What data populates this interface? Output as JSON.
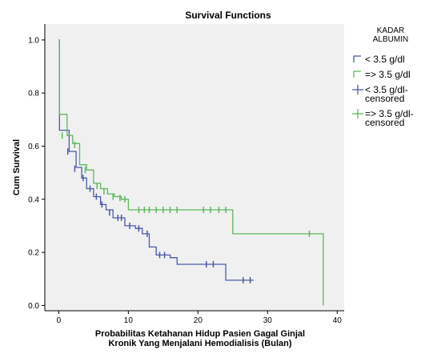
{
  "chart_data": {
    "type": "line",
    "step": true,
    "title": "Survival Functions",
    "xlabel_lines": [
      "Probabilitas Ketahanan Hidup Pasien Gagal Ginjal",
      "Kronik Yang Menjalani Hemodialisis (Bulan)"
    ],
    "ylabel": "Cum Survival",
    "xlim": [
      -2,
      41
    ],
    "ylim": [
      -0.02,
      1.06
    ],
    "xticks": [
      0,
      10,
      20,
      30,
      40
    ],
    "yticks": [
      0.0,
      0.2,
      0.4,
      0.6,
      0.8,
      1.0
    ],
    "ytick_labels": [
      "0.0",
      "0.2",
      "0.4",
      "0.6",
      "0.8",
      "1.0"
    ],
    "grid": false,
    "legend_position": "right",
    "legend_title_lines": [
      "KADAR",
      "ALBUMIN"
    ],
    "legend": [
      {
        "label_lines": [
          "< 3.5 g/dl"
        ],
        "kind": "line",
        "series": 0
      },
      {
        "label_lines": [
          "=> 3.5 g/dl"
        ],
        "kind": "line",
        "series": 1
      },
      {
        "label_lines": [
          "< 3.5 g/dl-",
          "censored"
        ],
        "kind": "censor",
        "series": 0
      },
      {
        "label_lines": [
          "=> 3.5 g/dl-",
          "censored"
        ],
        "kind": "censor",
        "series": 1
      }
    ],
    "series": [
      {
        "name": "< 3.5 g/dl",
        "color": "#4a5aa8",
        "steps": [
          [
            0,
            1.0
          ],
          [
            0.1,
            0.66
          ],
          [
            1.5,
            0.58
          ],
          [
            2.5,
            0.52
          ],
          [
            3.3,
            0.48
          ],
          [
            4,
            0.44
          ],
          [
            5,
            0.41
          ],
          [
            6,
            0.38
          ],
          [
            6.8,
            0.36
          ],
          [
            7.8,
            0.33
          ],
          [
            9.5,
            0.3
          ],
          [
            11,
            0.29
          ],
          [
            12,
            0.27
          ],
          [
            13,
            0.22
          ],
          [
            14,
            0.19
          ],
          [
            16,
            0.18
          ],
          [
            17,
            0.155
          ],
          [
            24,
            0.095
          ],
          [
            28,
            0.095
          ]
        ],
        "censored": [
          [
            1.3,
            0.58
          ],
          [
            2.3,
            0.515
          ],
          [
            3.5,
            0.48
          ],
          [
            4.5,
            0.44
          ],
          [
            5.4,
            0.41
          ],
          [
            6.2,
            0.38
          ],
          [
            7.3,
            0.35
          ],
          [
            8.5,
            0.33
          ],
          [
            9,
            0.33
          ],
          [
            10.2,
            0.3
          ],
          [
            11.5,
            0.29
          ],
          [
            12.7,
            0.27
          ],
          [
            14.5,
            0.19
          ],
          [
            15.2,
            0.19
          ],
          [
            21.2,
            0.155
          ],
          [
            22.2,
            0.155
          ],
          [
            26.5,
            0.095
          ],
          [
            27.5,
            0.095
          ]
        ]
      },
      {
        "name": "=> 3.5 g/dl",
        "color": "#5cb85c",
        "steps": [
          [
            0,
            1.0
          ],
          [
            0.1,
            0.72
          ],
          [
            1.2,
            0.64
          ],
          [
            2,
            0.61
          ],
          [
            3,
            0.53
          ],
          [
            4,
            0.51
          ],
          [
            5,
            0.46
          ],
          [
            6,
            0.44
          ],
          [
            7,
            0.42
          ],
          [
            8,
            0.41
          ],
          [
            9,
            0.4
          ],
          [
            10,
            0.36
          ],
          [
            25,
            0.27
          ],
          [
            38,
            0.0
          ]
        ],
        "censored": [
          [
            0.5,
            0.64
          ],
          [
            2.3,
            0.605
          ],
          [
            3.8,
            0.51
          ],
          [
            5.5,
            0.45
          ],
          [
            6.5,
            0.43
          ],
          [
            7.8,
            0.41
          ],
          [
            8.8,
            0.405
          ],
          [
            9.5,
            0.4
          ],
          [
            11.5,
            0.36
          ],
          [
            12.3,
            0.36
          ],
          [
            13,
            0.36
          ],
          [
            14,
            0.36
          ],
          [
            15,
            0.36
          ],
          [
            16,
            0.36
          ],
          [
            17,
            0.36
          ],
          [
            20.8,
            0.36
          ],
          [
            21.8,
            0.36
          ],
          [
            23,
            0.36
          ],
          [
            24,
            0.36
          ],
          [
            36,
            0.27
          ]
        ]
      }
    ]
  }
}
